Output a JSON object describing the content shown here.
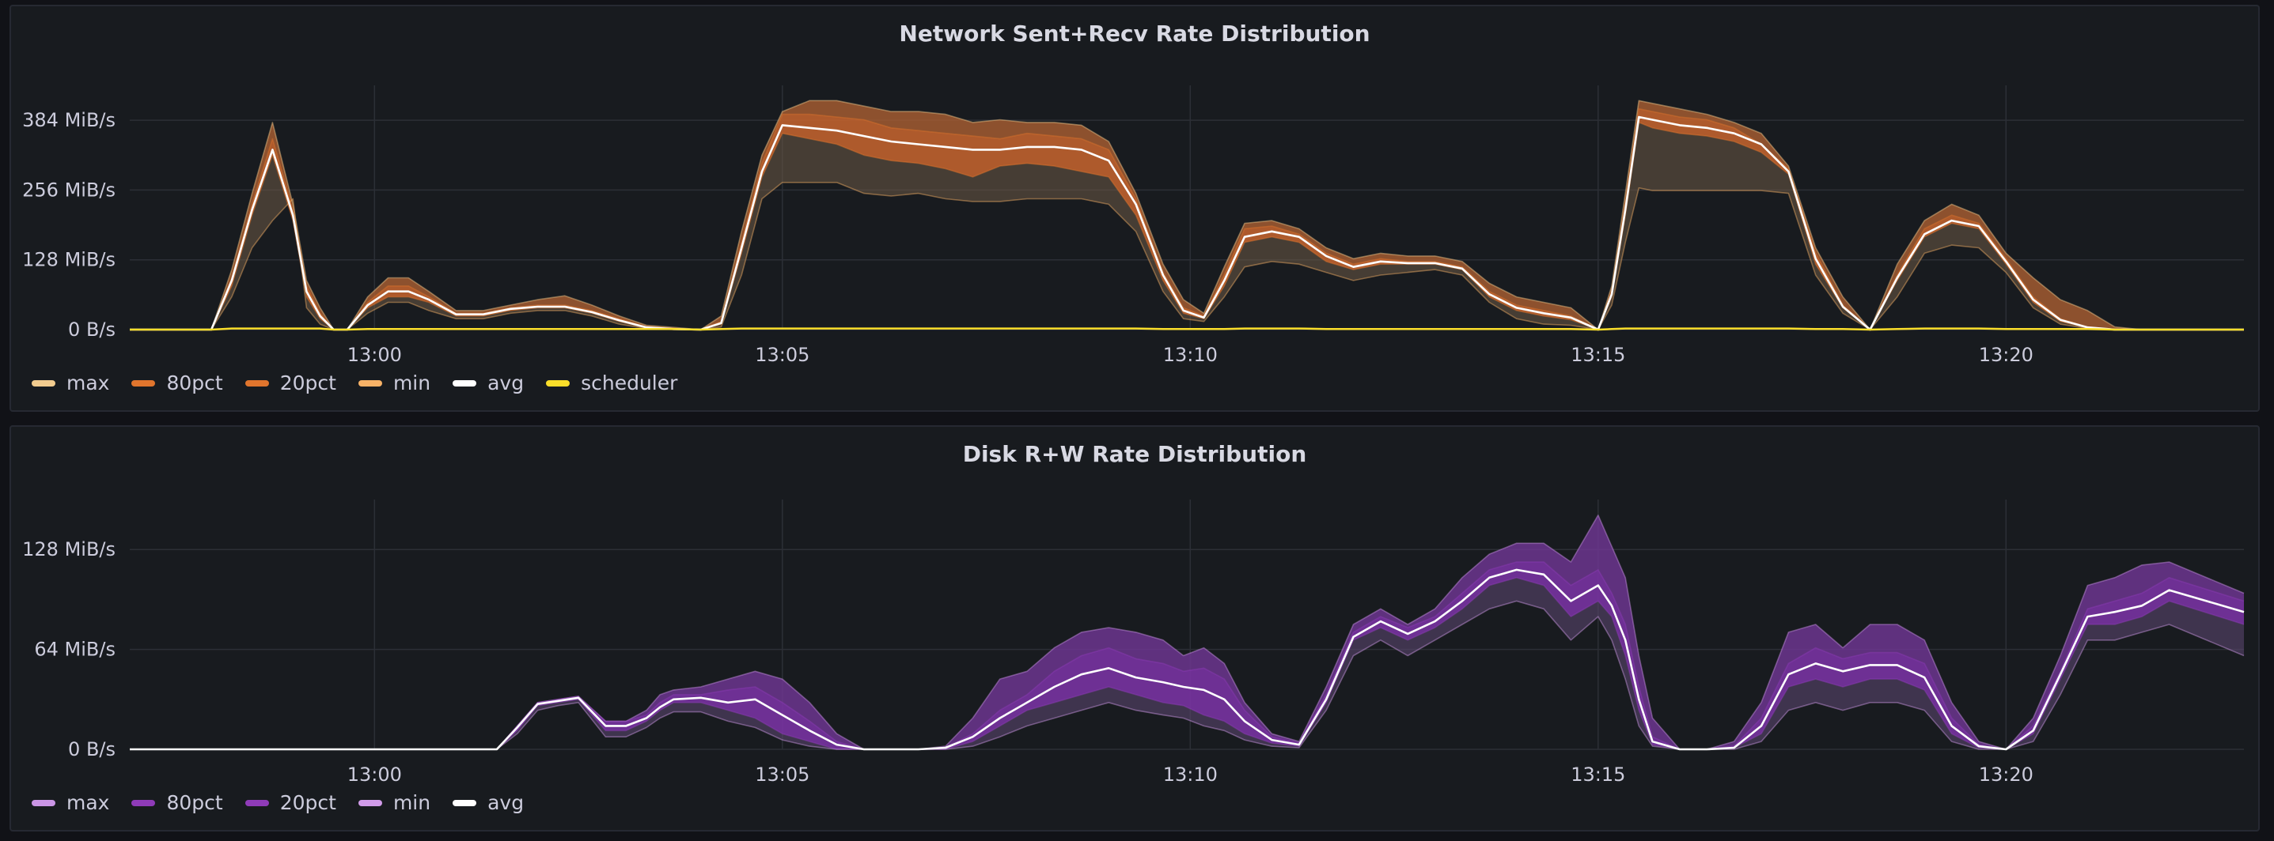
{
  "chart_data": [
    {
      "type": "area",
      "title": "Network Sent+Recv Rate Distribution",
      "x_unit": "minutes",
      "xlim": [
        "12:57:00",
        "13:22:55"
      ],
      "ylim": [
        0,
        448
      ],
      "y_ticks": [
        {
          "value": 0,
          "label": "0 B/s"
        },
        {
          "value": 128,
          "label": "128 MiB/s"
        },
        {
          "value": 256,
          "label": "256 MiB/s"
        },
        {
          "value": 384,
          "label": "384 MiB/s"
        }
      ],
      "x_ticks": [
        "13:00",
        "13:05",
        "13:10",
        "13:15",
        "13:20"
      ],
      "x_tick_values": [
        180,
        480,
        780,
        1080,
        1380
      ],
      "grid": true,
      "legend_placement": "bottom-left",
      "x": [
        0,
        40,
        60,
        75,
        90,
        105,
        120,
        130,
        140,
        150,
        160,
        175,
        190,
        205,
        220,
        240,
        260,
        280,
        300,
        320,
        340,
        360,
        380,
        400,
        420,
        435,
        450,
        465,
        480,
        500,
        520,
        540,
        560,
        580,
        600,
        620,
        640,
        660,
        680,
        700,
        720,
        740,
        760,
        775,
        790,
        805,
        820,
        840,
        860,
        880,
        900,
        920,
        940,
        960,
        980,
        1000,
        1020,
        1040,
        1060,
        1080,
        1090,
        1100,
        1110,
        1120,
        1140,
        1160,
        1180,
        1200,
        1220,
        1240,
        1260,
        1280,
        1300,
        1320,
        1340,
        1360,
        1380,
        1400,
        1420,
        1440,
        1460,
        1480,
        1500,
        1555
      ],
      "series": [
        {
          "name": "max",
          "color": "#f2cc8f",
          "values": [
            0,
            0,
            0,
            110,
            250,
            380,
            230,
            90,
            40,
            0,
            0,
            60,
            95,
            95,
            70,
            35,
            35,
            45,
            55,
            62,
            45,
            25,
            8,
            4,
            0,
            25,
            180,
            320,
            400,
            420,
            420,
            410,
            400,
            400,
            395,
            380,
            385,
            380,
            380,
            375,
            345,
            250,
            120,
            55,
            30,
            115,
            195,
            200,
            185,
            150,
            130,
            140,
            135,
            135,
            125,
            85,
            60,
            50,
            40,
            0,
            80,
            250,
            420,
            415,
            405,
            395,
            380,
            360,
            300,
            150,
            60,
            0,
            120,
            200,
            230,
            210,
            140,
            95,
            55,
            35,
            5,
            0,
            0,
            0
          ]
        },
        {
          "name": "80pct",
          "color": "#e0752d",
          "values": [
            0,
            0,
            0,
            95,
            230,
            350,
            220,
            80,
            30,
            0,
            0,
            50,
            80,
            80,
            60,
            30,
            30,
            40,
            45,
            45,
            35,
            20,
            5,
            2,
            0,
            15,
            160,
            305,
            395,
            395,
            390,
            385,
            370,
            365,
            360,
            355,
            350,
            360,
            355,
            350,
            330,
            240,
            105,
            40,
            25,
            100,
            185,
            190,
            175,
            140,
            120,
            130,
            125,
            125,
            115,
            70,
            45,
            35,
            25,
            0,
            70,
            230,
            405,
            400,
            390,
            385,
            370,
            340,
            295,
            140,
            45,
            0,
            100,
            185,
            210,
            195,
            130,
            60,
            20,
            5,
            0,
            0,
            0,
            0
          ]
        },
        {
          "name": "20pct",
          "color": "#e0752d",
          "values": [
            0,
            0,
            0,
            80,
            210,
            320,
            200,
            60,
            20,
            0,
            0,
            40,
            60,
            60,
            50,
            25,
            25,
            35,
            40,
            40,
            30,
            15,
            3,
            1,
            0,
            10,
            140,
            280,
            360,
            350,
            340,
            320,
            310,
            305,
            295,
            280,
            300,
            305,
            300,
            290,
            280,
            210,
            90,
            30,
            20,
            80,
            160,
            170,
            160,
            125,
            110,
            120,
            120,
            120,
            110,
            60,
            35,
            25,
            18,
            0,
            60,
            210,
            380,
            370,
            360,
            355,
            345,
            325,
            285,
            120,
            40,
            0,
            90,
            170,
            195,
            185,
            120,
            50,
            15,
            3,
            0,
            0,
            0,
            0
          ]
        },
        {
          "name": "min",
          "color": "#f7b267",
          "values": [
            0,
            0,
            0,
            60,
            150,
            200,
            240,
            40,
            10,
            0,
            0,
            30,
            50,
            50,
            35,
            20,
            20,
            30,
            35,
            35,
            25,
            10,
            2,
            0,
            0,
            5,
            100,
            240,
            270,
            270,
            270,
            250,
            245,
            250,
            240,
            235,
            235,
            240,
            240,
            240,
            230,
            180,
            70,
            20,
            15,
            60,
            115,
            125,
            120,
            105,
            90,
            100,
            105,
            110,
            100,
            50,
            20,
            10,
            8,
            0,
            45,
            160,
            260,
            255,
            255,
            255,
            255,
            255,
            250,
            100,
            30,
            0,
            60,
            140,
            155,
            150,
            105,
            40,
            10,
            2,
            0,
            0,
            0,
            0
          ]
        },
        {
          "name": "avg",
          "color": "#ffffff",
          "values": [
            0,
            0,
            0,
            90,
            220,
            330,
            210,
            70,
            25,
            0,
            0,
            45,
            70,
            70,
            55,
            28,
            28,
            38,
            42,
            42,
            32,
            17,
            4,
            1,
            0,
            12,
            150,
            290,
            375,
            370,
            365,
            355,
            345,
            340,
            335,
            330,
            330,
            335,
            335,
            330,
            310,
            230,
            100,
            35,
            22,
            90,
            170,
            180,
            170,
            135,
            115,
            125,
            122,
            122,
            112,
            65,
            40,
            30,
            22,
            0,
            65,
            220,
            390,
            385,
            375,
            370,
            360,
            340,
            290,
            130,
            42,
            0,
            95,
            175,
            200,
            190,
            125,
            55,
            18,
            4,
            0,
            0,
            0,
            0
          ]
        },
        {
          "name": "scheduler",
          "color": "#fade2a",
          "values": [
            0,
            0,
            0,
            2,
            2,
            2,
            2,
            2,
            2,
            0,
            0,
            1,
            1,
            1,
            1,
            1,
            1,
            1,
            1,
            1,
            1,
            1,
            1,
            1,
            0,
            1,
            2,
            2,
            2,
            2,
            2,
            2,
            2,
            2,
            2,
            2,
            2,
            2,
            2,
            2,
            2,
            2,
            1,
            1,
            1,
            1,
            2,
            2,
            2,
            1,
            1,
            1,
            1,
            1,
            1,
            1,
            1,
            1,
            1,
            0,
            1,
            2,
            2,
            2,
            2,
            2,
            2,
            2,
            2,
            1,
            1,
            0,
            1,
            2,
            2,
            2,
            1,
            1,
            1,
            1,
            0,
            0,
            0,
            0
          ]
        }
      ]
    },
    {
      "type": "area",
      "title": "Disk R+W Rate Distribution",
      "x_unit": "minutes",
      "xlim": [
        "12:57:00",
        "13:22:55"
      ],
      "ylim": [
        0,
        160
      ],
      "y_ticks": [
        {
          "value": 0,
          "label": "0 B/s"
        },
        {
          "value": 64,
          "label": "64 MiB/s"
        },
        {
          "value": 128,
          "label": "128 MiB/s"
        }
      ],
      "x_ticks": [
        "13:00",
        "13:05",
        "13:10",
        "13:15",
        "13:20"
      ],
      "x_tick_values": [
        180,
        480,
        780,
        1080,
        1380
      ],
      "grid": true,
      "legend_placement": "bottom-left",
      "x": [
        0,
        60,
        120,
        140,
        150,
        170,
        195,
        210,
        225,
        240,
        255,
        270,
        285,
        300,
        315,
        330,
        350,
        365,
        380,
        390,
        400,
        420,
        440,
        460,
        480,
        500,
        520,
        540,
        560,
        580,
        600,
        620,
        640,
        660,
        680,
        700,
        720,
        740,
        760,
        775,
        790,
        805,
        820,
        840,
        860,
        880,
        900,
        920,
        940,
        960,
        980,
        1000,
        1020,
        1040,
        1060,
        1080,
        1090,
        1100,
        1110,
        1120,
        1140,
        1160,
        1180,
        1200,
        1220,
        1240,
        1260,
        1280,
        1300,
        1320,
        1340,
        1360,
        1380,
        1400,
        1420,
        1440,
        1460,
        1480,
        1500,
        1555
      ],
      "series": [
        {
          "name": "max",
          "color": "#ca95e5",
          "values": [
            0,
            0,
            0,
            0,
            0,
            0,
            0,
            0,
            0,
            0,
            0,
            0,
            15,
            30,
            32,
            34,
            18,
            18,
            25,
            35,
            38,
            40,
            45,
            50,
            45,
            30,
            10,
            0,
            0,
            0,
            2,
            20,
            45,
            50,
            65,
            75,
            78,
            75,
            70,
            60,
            65,
            55,
            30,
            10,
            5,
            40,
            80,
            90,
            80,
            90,
            110,
            125,
            132,
            132,
            120,
            150,
            130,
            110,
            60,
            20,
            0,
            0,
            5,
            30,
            75,
            80,
            65,
            80,
            80,
            70,
            30,
            5,
            0,
            20,
            60,
            105,
            110,
            118,
            120,
            100
          ]
        },
        {
          "name": "80pct",
          "color": "#8f3bb8",
          "values": [
            0,
            0,
            0,
            0,
            0,
            0,
            0,
            0,
            0,
            0,
            0,
            0,
            15,
            30,
            32,
            34,
            18,
            18,
            22,
            30,
            35,
            35,
            38,
            40,
            30,
            18,
            5,
            0,
            0,
            0,
            1,
            10,
            25,
            35,
            50,
            60,
            65,
            58,
            55,
            50,
            52,
            45,
            25,
            8,
            4,
            35,
            75,
            85,
            78,
            85,
            100,
            115,
            120,
            120,
            105,
            115,
            100,
            80,
            40,
            8,
            0,
            0,
            2,
            20,
            55,
            65,
            58,
            62,
            62,
            55,
            20,
            3,
            0,
            15,
            50,
            90,
            95,
            100,
            110,
            95
          ]
        },
        {
          "name": "20pct",
          "color": "#8f3bb8",
          "values": [
            0,
            0,
            0,
            0,
            0,
            0,
            0,
            0,
            0,
            0,
            0,
            0,
            12,
            28,
            30,
            32,
            12,
            12,
            18,
            25,
            30,
            30,
            25,
            20,
            10,
            5,
            0,
            0,
            0,
            0,
            0,
            5,
            15,
            25,
            30,
            35,
            40,
            35,
            30,
            28,
            22,
            18,
            10,
            4,
            2,
            30,
            70,
            78,
            70,
            78,
            90,
            105,
            110,
            105,
            85,
            95,
            85,
            60,
            25,
            3,
            0,
            0,
            1,
            10,
            40,
            45,
            40,
            45,
            45,
            38,
            10,
            1,
            0,
            10,
            45,
            80,
            80,
            85,
            95,
            80
          ]
        },
        {
          "name": "min",
          "color": "#d19be9",
          "values": [
            0,
            0,
            0,
            0,
            0,
            0,
            0,
            0,
            0,
            0,
            0,
            0,
            10,
            25,
            28,
            30,
            8,
            8,
            14,
            20,
            24,
            24,
            18,
            14,
            6,
            2,
            0,
            0,
            0,
            0,
            0,
            2,
            8,
            15,
            20,
            25,
            30,
            25,
            22,
            20,
            15,
            12,
            6,
            2,
            1,
            25,
            60,
            70,
            60,
            70,
            80,
            90,
            95,
            90,
            70,
            85,
            70,
            45,
            15,
            2,
            0,
            0,
            0,
            5,
            25,
            30,
            25,
            30,
            30,
            25,
            5,
            0,
            0,
            5,
            35,
            70,
            70,
            75,
            80,
            60
          ]
        },
        {
          "name": "avg",
          "color": "#ffffff",
          "values": [
            0,
            0,
            0,
            0,
            0,
            0,
            0,
            0,
            0,
            0,
            0,
            0,
            14,
            29,
            31,
            33,
            15,
            15,
            20,
            27,
            32,
            33,
            30,
            32,
            22,
            12,
            3,
            0,
            0,
            0,
            1,
            8,
            20,
            30,
            40,
            48,
            52,
            46,
            43,
            40,
            38,
            32,
            18,
            6,
            3,
            32,
            72,
            82,
            74,
            82,
            95,
            110,
            115,
            112,
            95,
            105,
            92,
            70,
            32,
            5,
            0,
            0,
            1,
            15,
            48,
            55,
            50,
            54,
            54,
            46,
            15,
            2,
            0,
            12,
            48,
            85,
            88,
            92,
            102,
            88
          ]
        }
      ]
    }
  ]
}
